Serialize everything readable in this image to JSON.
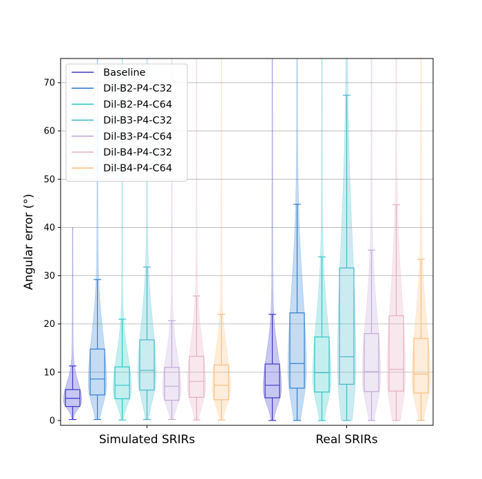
{
  "chart_data": {
    "type": "violin-box",
    "title": "",
    "xlabel": "",
    "ylabel": "Angular error (°)",
    "ylim": [
      -1,
      75
    ],
    "yticks": [
      0,
      10,
      20,
      30,
      40,
      50,
      60,
      70
    ],
    "grid": "horizontal",
    "legend_position": "top-left",
    "groups": [
      "Simulated SRIRs",
      "Real SRIRs"
    ],
    "series": [
      {
        "name": "Baseline",
        "color": "#3b36c9",
        "stats": [
          {
            "whisker_low": 0.2,
            "q1": 2.9,
            "median": 4.6,
            "q3": 6.4,
            "whisker_high": 11.3,
            "max": 40
          },
          {
            "whisker_low": 0.0,
            "q1": 4.7,
            "median": 7.3,
            "q3": 11.7,
            "whisker_high": 22.0,
            "max": 75
          }
        ]
      },
      {
        "name": "Dil-B2-P4-C32",
        "color": "#2f7fcf",
        "stats": [
          {
            "whisker_low": 0.2,
            "q1": 5.3,
            "median": 8.6,
            "q3": 14.8,
            "whisker_high": 29.2,
            "max": 75
          },
          {
            "whisker_low": 0.0,
            "q1": 6.7,
            "median": 11.8,
            "q3": 22.3,
            "whisker_high": 44.8,
            "max": 75
          }
        ]
      },
      {
        "name": "Dil-B2-P4-C64",
        "color": "#2cc7c7",
        "stats": [
          {
            "whisker_low": 0.1,
            "q1": 4.5,
            "median": 7.3,
            "q3": 11.1,
            "whisker_high": 21.0,
            "max": 75
          },
          {
            "whisker_low": 0.0,
            "q1": 5.9,
            "median": 9.9,
            "q3": 17.3,
            "whisker_high": 33.9,
            "max": 75
          }
        ]
      },
      {
        "name": "Dil-B3-P4-C32",
        "color": "#42b8c8",
        "stats": [
          {
            "whisker_low": 0.2,
            "q1": 6.3,
            "median": 10.4,
            "q3": 16.7,
            "whisker_high": 31.8,
            "max": 75
          },
          {
            "whisker_low": 0.0,
            "q1": 7.5,
            "median": 13.2,
            "q3": 31.6,
            "whisker_high": 67.4,
            "max": 75
          }
        ]
      },
      {
        "name": "Dil-B3-P4-C64",
        "color": "#c3a8d8",
        "stats": [
          {
            "whisker_low": 0.2,
            "q1": 4.2,
            "median": 7.1,
            "q3": 11.0,
            "whisker_high": 20.7,
            "max": 75
          },
          {
            "whisker_low": 0.0,
            "q1": 6.0,
            "median": 10.1,
            "q3": 18.0,
            "whisker_high": 35.3,
            "max": 75
          }
        ]
      },
      {
        "name": "Dil-B4-P4-C32",
        "color": "#e6aec0",
        "stats": [
          {
            "whisker_low": 0.1,
            "q1": 4.8,
            "median": 8.1,
            "q3": 13.3,
            "whisker_high": 25.8,
            "max": 75
          },
          {
            "whisker_low": 0.0,
            "q1": 6.1,
            "median": 10.6,
            "q3": 21.7,
            "whisker_high": 44.7,
            "max": 75
          }
        ]
      },
      {
        "name": "Dil-B4-P4-C64",
        "color": "#ffbd7e",
        "stats": [
          {
            "whisker_low": 0.1,
            "q1": 4.3,
            "median": 7.3,
            "q3": 11.5,
            "whisker_high": 22.0,
            "max": 75
          },
          {
            "whisker_low": 0.0,
            "q1": 5.7,
            "median": 9.6,
            "q3": 17.0,
            "whisker_high": 33.4,
            "max": 75
          }
        ]
      }
    ]
  }
}
